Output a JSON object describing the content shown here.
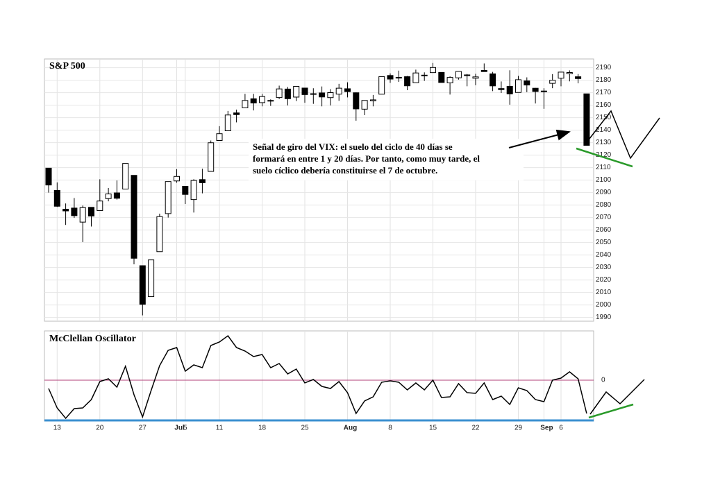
{
  "chart_data": [
    {
      "type": "candlestick",
      "title": "S&P 500",
      "open": [
        2109.57,
        2091.75,
        2076.65,
        2077.6,
        2066.36,
        2078.2,
        2075.58,
        2085.19,
        2089.75,
        2092.8,
        2103.81,
        2031.45,
        2006.67,
        2042.69,
        2073.17,
        2099.34,
        2095.05,
        2084.43,
        2100.42,
        2106.97,
        2131.72,
        2139.5,
        2153.81,
        2157.88,
        2165.13,
        2162.04,
        2163.79,
        2166.1,
        2172.91,
        2166.47,
        2173.71,
        2168.97,
        2169.81,
        2166.05,
        2168.83,
        2173.15,
        2169.94,
        2156.81,
        2163.51,
        2168.79,
        2183.76,
        2182.24,
        2182.81,
        2177.97,
        2183.74,
        2186.08,
        2186.24,
        2177.84,
        2181.9,
        2184.24,
        2181.58,
        2187.81,
        2185.09,
        2173.29,
        2175.1,
        2170.19,
        2179.45,
        2173.56,
        2171.33,
        2177.49,
        2181.61,
        2185.17,
        2182.76,
        2169.08
      ],
      "high": [
        2109.57,
        2098.12,
        2081.3,
        2085.65,
        2079.62,
        2078.2,
        2100.66,
        2093.66,
        2099.71,
        2113.32,
        2103.81,
        2031.45,
        2036.09,
        2073.13,
        2098.94,
        2108.71,
        2095.05,
        2100.72,
        2109.08,
        2131.71,
        2143.16,
        2155.4,
        2156.45,
        2169.05,
        2169.05,
        2168.99,
        2164.63,
        2175.63,
        2174.56,
        2175.11,
        2173.71,
        2173.54,
        2174.98,
        2172.85,
        2177.09,
        2178.29,
        2170.2,
        2163.79,
        2168.19,
        2182.87,
        2185.44,
        2187.66,
        2183.41,
        2188.45,
        2186.28,
        2193.81,
        2186.24,
        2183.08,
        2187.03,
        2185.0,
        2185.15,
        2193.42,
        2186.66,
        2179.0,
        2187.94,
        2183.48,
        2182.27,
        2173.79,
        2173.56,
        2184.87,
        2186.57,
        2187.87,
        2184.94,
        2169.08
      ],
      "low": [
        2089.96,
        2078.46,
        2064.1,
        2069.8,
        2050.37,
        2062.84,
        2075.58,
        2083.02,
        2084.36,
        2092.8,
        2032.57,
        1991.68,
        2006.67,
        2042.69,
        2070.0,
        2097.9,
        2080.86,
        2074.02,
        2089.39,
        2106.97,
        2131.72,
        2139.5,
        2146.21,
        2157.88,
        2155.79,
        2159.07,
        2159.4,
        2164.89,
        2159.75,
        2163.24,
        2161.95,
        2161.07,
        2159.07,
        2159.74,
        2163.49,
        2166.21,
        2147.58,
        2152.02,
        2159.07,
        2168.79,
        2177.85,
        2178.61,
        2172.0,
        2177.97,
        2179.42,
        2186.08,
        2178.14,
        2168.5,
        2180.46,
        2175.13,
        2175.96,
        2186.8,
        2171.25,
        2169.74,
        2160.39,
        2170.19,
        2170.41,
        2161.35,
        2157.09,
        2173.59,
        2175.1,
        2179.07,
        2177.49,
        2127.81
      ],
      "close": [
        2096.07,
        2079.06,
        2075.32,
        2071.5,
        2077.99,
        2071.22,
        2083.25,
        2088.9,
        2085.45,
        2113.32,
        2037.41,
        2000.54,
        2036.09,
        2070.77,
        2098.86,
        2102.95,
        2088.55,
        2099.73,
        2097.9,
        2129.9,
        2137.16,
        2152.14,
        2152.43,
        2163.75,
        2161.74,
        2166.89,
        2163.78,
        2173.02,
        2165.17,
        2175.03,
        2168.48,
        2169.18,
        2166.58,
        2170.06,
        2173.6,
        2170.84,
        2157.03,
        2163.79,
        2164.25,
        2182.87,
        2180.89,
        2181.74,
        2175.49,
        2185.79,
        2184.05,
        2190.15,
        2178.15,
        2182.22,
        2187.02,
        2183.87,
        2182.64,
        2186.9,
        2175.44,
        2172.47,
        2169.04,
        2180.38,
        2176.12,
        2170.95,
        2170.86,
        2179.98,
        2186.48,
        2186.16,
        2181.3,
        2127.81
      ],
      "up_color": "#ffffff",
      "down_color": "#000000",
      "ylim": [
        1987,
        2197
      ],
      "yticks": [
        1990,
        2000,
        2010,
        2020,
        2030,
        2040,
        2050,
        2060,
        2070,
        2080,
        2090,
        2100,
        2110,
        2120,
        2130,
        2140,
        2150,
        2160,
        2170,
        2180,
        2190
      ],
      "grid": true,
      "annotation": [
        "Señal de giro del VIX: el suelo del ciclo de 40 días se",
        "formará en entre 1 y 20 días. Por tanto, como muy tarde, el",
        "suelo cíclico debería constituirse el 7 de octubre."
      ]
    },
    {
      "type": "line",
      "title": "McClellan Oscillator",
      "categories": [
        null,
        "13",
        null,
        null,
        null,
        null,
        "20",
        null,
        null,
        null,
        null,
        "27",
        null,
        null,
        null,
        "Jul",
        "5",
        null,
        null,
        null,
        "11",
        null,
        null,
        null,
        null,
        "18",
        null,
        null,
        null,
        null,
        "25",
        null,
        null,
        null,
        null,
        "Aug",
        null,
        null,
        null,
        null,
        "8",
        null,
        null,
        null,
        null,
        "15",
        null,
        null,
        null,
        null,
        "22",
        null,
        null,
        null,
        null,
        "29",
        null,
        null,
        "Sep",
        null,
        "6",
        null,
        null,
        null
      ],
      "values": [
        -12,
        -40,
        -55,
        -41,
        -40,
        -28,
        -2,
        2,
        -10,
        20,
        -21,
        -53,
        -15,
        21,
        43,
        47,
        13,
        22,
        18,
        50,
        55,
        64,
        47,
        42,
        34,
        37,
        18,
        24,
        9,
        16,
        -4,
        1,
        -9,
        -12,
        -2,
        -18,
        -48,
        -30,
        -24,
        -3,
        -1,
        -3,
        -14,
        -4,
        -14,
        0,
        -25,
        -24,
        -5,
        -18,
        -19,
        -4,
        -28,
        -23,
        -35,
        -11,
        -15,
        -28,
        -31,
        0,
        3,
        12,
        2,
        -48
      ],
      "color": "#000000",
      "zero_line_color": "#b0407a",
      "ylim": [
        -59,
        71
      ],
      "yticks": [
        0
      ]
    }
  ]
}
